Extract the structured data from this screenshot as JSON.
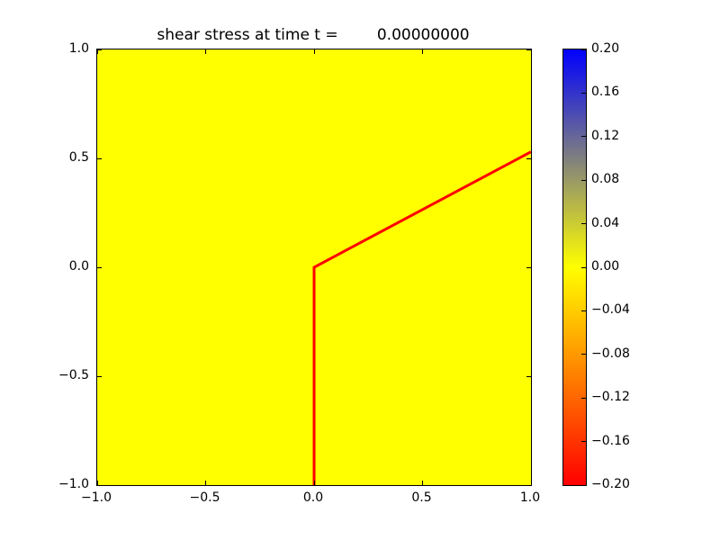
{
  "chart_data": {
    "type": "heatmap",
    "title": "shear stress at time t =        0.00000000",
    "xlabel": "",
    "ylabel": "",
    "xlim": [
      -1.0,
      1.0
    ],
    "ylim": [
      -1.0,
      1.0
    ],
    "grid": false,
    "x_tick_values": [
      -1.0,
      -0.5,
      0.0,
      0.5,
      1.0
    ],
    "x_tick_labels": [
      "−1.0",
      "−0.5",
      "0.0",
      "0.5",
      "1.0"
    ],
    "y_tick_values": [
      -1.0,
      -0.5,
      0.0,
      0.5,
      1.0
    ],
    "y_tick_labels": [
      "−1.0",
      "−0.5",
      "0.0",
      "0.5",
      "1.0"
    ],
    "field": {
      "uniform_value": 0.0,
      "color": "#ffff00"
    },
    "fault_line": {
      "points": [
        [
          0.0,
          -1.0
        ],
        [
          0.0,
          0.0
        ],
        [
          1.0,
          0.53
        ]
      ],
      "color": "#ff0000",
      "width": 3
    },
    "colorbar": {
      "min": -0.2,
      "max": 0.2,
      "tick_values": [
        0.2,
        0.16,
        0.12,
        0.08,
        0.04,
        0.0,
        -0.04,
        -0.08,
        -0.12,
        -0.16,
        -0.2
      ],
      "tick_labels": [
        "0.20",
        "0.16",
        "0.12",
        "0.08",
        "0.04",
        "0.00",
        "−0.04",
        "−0.08",
        "−0.12",
        "−0.16",
        "−0.20"
      ],
      "gradient_stops": [
        {
          "pos": 0.0,
          "color": "#0000ff"
        },
        {
          "pos": 0.5,
          "color": "#ffff00"
        },
        {
          "pos": 1.0,
          "color": "#ff0000"
        }
      ]
    },
    "colors": {
      "frame": "#000000",
      "background": "#ffffff"
    }
  }
}
